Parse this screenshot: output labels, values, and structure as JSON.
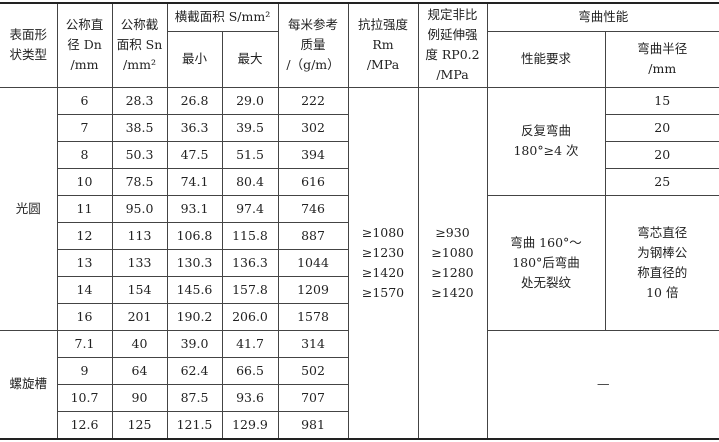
{
  "header": {
    "surface_type": "表面形\n状类型",
    "nominal_diameter": "公称直\n径 Dn\n/mm",
    "nominal_area": "公称截\n面积 Sn\n/mm²",
    "cross_area": "横截面积 S/mm²",
    "min": "最小",
    "max": "最大",
    "mass": "每米参考\n质量\n/（g/m）",
    "tensile": "抗拉强度\nRm\n/MPa",
    "proof": "规定非比\n例延伸强\n度 RP0.2\n/MPa",
    "bending": "弯曲性能",
    "bend_req": "性能要求",
    "bend_radius": "弯曲半径\n/mm"
  },
  "groups": [
    {
      "type": "光圆",
      "rows": [
        [
          "6",
          "28.3",
          "26.8",
          "29.0",
          "222"
        ],
        [
          "7",
          "38.5",
          "36.3",
          "39.5",
          "302"
        ],
        [
          "8",
          "50.3",
          "47.5",
          "51.5",
          "394"
        ],
        [
          "10",
          "78.5",
          "74.1",
          "80.4",
          "616"
        ],
        [
          "11",
          "95.0",
          "93.1",
          "97.4",
          "746"
        ],
        [
          "12",
          "113",
          "106.8",
          "115.8",
          "887"
        ],
        [
          "13",
          "133",
          "130.3",
          "136.3",
          "1044"
        ],
        [
          "14",
          "154",
          "145.6",
          "157.8",
          "1209"
        ],
        [
          "16",
          "201",
          "190.2",
          "206.0",
          "1578"
        ]
      ]
    },
    {
      "type": "螺旋槽",
      "rows": [
        [
          "7.1",
          "40",
          "39.0",
          "41.7",
          "314"
        ],
        [
          "9",
          "64",
          "62.4",
          "66.5",
          "502"
        ],
        [
          "10.7",
          "90",
          "87.5",
          "93.6",
          "707"
        ],
        [
          "12.6",
          "125",
          "121.5",
          "129.9",
          "981"
        ]
      ]
    }
  ],
  "tensile_values": "≥1080\n≥1230\n≥1420\n≥1570",
  "proof_values": "≥930\n≥1080\n≥1280\n≥1420",
  "bend_req_1": "反复弯曲\n180°≥4 次",
  "bend_radii_1": [
    "15",
    "20",
    "20",
    "25"
  ],
  "bend_req_2": "弯曲 160°～\n180°后弯曲\n处无裂纹",
  "bend_radius_2": "弯芯直径\n为钢棒公\n称直径的\n10 倍",
  "groove_bend": "—"
}
